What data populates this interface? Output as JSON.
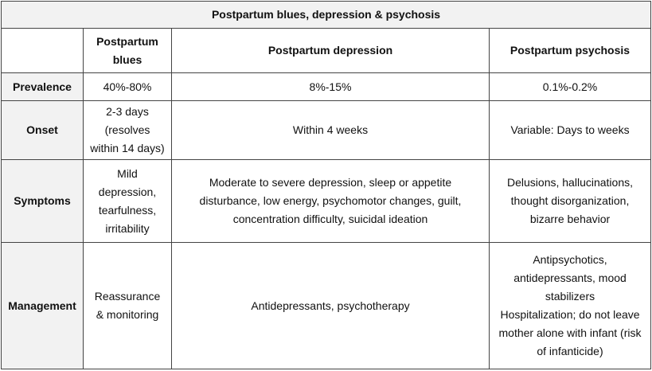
{
  "table": {
    "title": "Postpartum blues, depression & psychosis",
    "columns": [
      "",
      "Postpartum blues",
      "Postpartum depression",
      "Postpartum psychosis"
    ],
    "column_lines": {
      "blues": [
        "Postpartum",
        "blues"
      ]
    },
    "rows": [
      {
        "label": "Prevalence",
        "blues": [
          "40%-80%"
        ],
        "depression": [
          "8%-15%"
        ],
        "psychosis": [
          "0.1%-0.2%"
        ]
      },
      {
        "label": "Onset",
        "blues": [
          "2-3 days",
          "(resolves",
          "within 14 days)"
        ],
        "depression": [
          "Within 4 weeks"
        ],
        "psychosis": [
          "Variable: Days to weeks"
        ]
      },
      {
        "label": "Symptoms",
        "blues": [
          "Mild",
          "depression,",
          "tearfulness,",
          "irritability"
        ],
        "depression": [
          "Moderate to severe depression, sleep or appetite",
          "disturbance, low energy, psychomotor changes, guilt,",
          "concentration difficulty, suicidal ideation"
        ],
        "psychosis": [
          "Delusions, hallucinations,",
          "thought disorganization,",
          "bizarre behavior"
        ]
      },
      {
        "label": "Management",
        "blues": [
          "Reassurance",
          "& monitoring"
        ],
        "depression": [
          "Antidepressants, psychotherapy"
        ],
        "psychosis": [
          "Antipsychotics,",
          "antidepressants, mood",
          "stabilizers",
          "Hospitalization; do not leave",
          "mother alone with infant (risk",
          "of infanticide)"
        ]
      }
    ]
  }
}
